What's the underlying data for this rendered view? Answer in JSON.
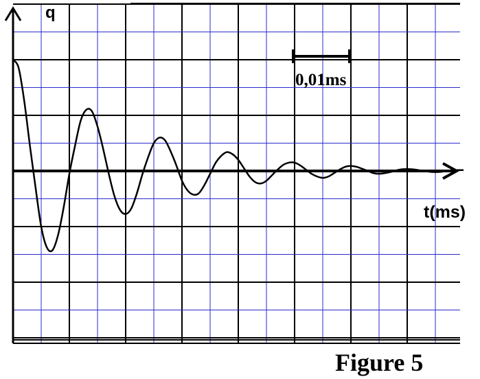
{
  "chart_data": {
    "type": "line",
    "ylabel": "q",
    "xlabel": "t(ms)",
    "scale_bar_label": "0,01ms",
    "scale_bar_value_ms": 0.01,
    "caption": "Figure 5",
    "grid": true,
    "colors": {
      "grid_minor": "#2a2acc",
      "grid_major": "#000000",
      "curve": "#000000"
    },
    "series": [
      {
        "curve": "damped oscillation",
        "x": [
          0,
          0.001,
          0.002,
          0.003,
          0.004,
          0.005,
          0.006,
          0.007,
          0.008,
          0.009,
          0.01,
          0.011,
          0.012,
          0.013,
          0.014,
          0.015,
          0.016,
          0.017,
          0.018,
          0.019,
          0.02,
          0.021,
          0.022,
          0.023,
          0.024,
          0.025,
          0.026,
          0.027,
          0.028,
          0.029,
          0.03,
          0.031,
          0.032,
          0.033,
          0.034,
          0.035,
          0.036,
          0.037,
          0.038,
          0.039,
          0.04,
          0.041,
          0.042,
          0.043,
          0.044,
          0.045,
          0.046,
          0.047,
          0.048,
          0.049,
          0.05,
          0.051,
          0.052,
          0.053,
          0.054,
          0.055,
          0.056,
          0.057,
          0.058,
          0.059,
          0.06,
          0.061,
          0.062,
          0.063,
          0.064,
          0.065,
          0.066,
          0.067,
          0.068,
          0.069,
          0.07,
          0.071,
          0.072,
          0.073,
          0.074,
          0.075,
          0.076,
          0.077,
          0.078,
          0.079,
          0.08
        ],
        "y": [
          4.0,
          3.7,
          2.5,
          0.9,
          -0.6,
          -2.0,
          -2.75,
          -2.85,
          -2.3,
          -1.3,
          -0.1,
          0.9,
          1.8,
          2.2,
          2.15,
          1.6,
          0.8,
          -0.1,
          -0.9,
          -1.4,
          -1.55,
          -1.35,
          -0.8,
          -0.1,
          0.5,
          1.0,
          1.2,
          1.1,
          0.7,
          0.2,
          -0.35,
          -0.7,
          -0.85,
          -0.8,
          -0.5,
          -0.1,
          0.3,
          0.55,
          0.68,
          0.6,
          0.4,
          0.1,
          -0.2,
          -0.4,
          -0.45,
          -0.35,
          -0.15,
          0.05,
          0.22,
          0.3,
          0.3,
          0.2,
          0.05,
          -0.1,
          -0.2,
          -0.25,
          -0.2,
          -0.08,
          0.05,
          0.15,
          0.18,
          0.15,
          0.08,
          0.0,
          -0.08,
          -0.1,
          -0.08,
          -0.04,
          0.02,
          0.06,
          0.07,
          0.06,
          0.03,
          0.0,
          -0.03,
          -0.04,
          -0.03,
          0.0,
          0.02,
          0.03,
          0.03
        ]
      }
    ]
  }
}
